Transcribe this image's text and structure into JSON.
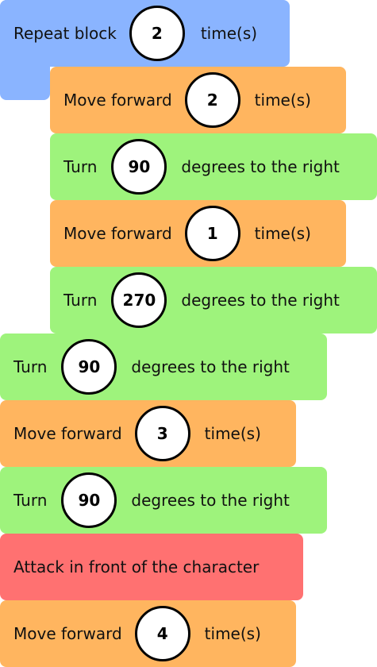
{
  "repeat_block": {
    "label": "Repeat block",
    "count": "2",
    "suffix": "time(s)"
  },
  "inner_blocks": [
    {
      "type": "move",
      "label": "Move forward",
      "value": "2",
      "suffix": "time(s)"
    },
    {
      "type": "turn",
      "label": "Turn",
      "value": "90",
      "suffix": "degrees to the right"
    },
    {
      "type": "move",
      "label": "Move forward",
      "value": "1",
      "suffix": "time(s)"
    },
    {
      "type": "turn",
      "label": "Turn",
      "value": "270",
      "suffix": "degrees to the right"
    }
  ],
  "blocks": [
    {
      "type": "turn",
      "label": "Turn",
      "value": "90",
      "suffix": "degrees to the right"
    },
    {
      "type": "move",
      "label": "Move forward",
      "value": "3",
      "suffix": "time(s)"
    },
    {
      "type": "turn",
      "label": "Turn",
      "value": "90",
      "suffix": "degrees to the right"
    },
    {
      "type": "attack",
      "label": "Attack in front of the character"
    },
    {
      "type": "move",
      "label": "Move forward",
      "value": "4",
      "suffix": "time(s)"
    }
  ],
  "colors": {
    "repeat": "#8ab4ff",
    "move": "#ffb55f",
    "turn": "#9ef37c",
    "attack": "#ff7171"
  }
}
